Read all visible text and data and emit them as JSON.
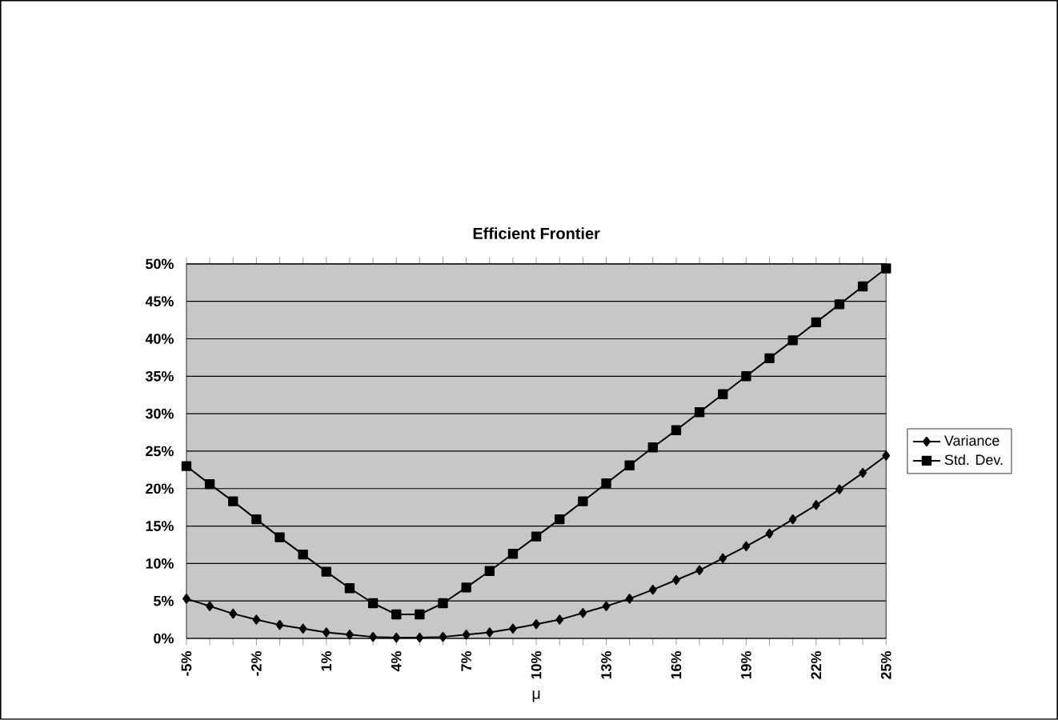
{
  "chart_data": {
    "type": "line",
    "title": "Efficient Frontier",
    "xlabel": "μ",
    "categories": [
      "-5%",
      null,
      null,
      "-2%",
      null,
      null,
      "1%",
      null,
      null,
      "4%",
      null,
      null,
      "7%",
      null,
      null,
      "10%",
      null,
      null,
      "13%",
      null,
      null,
      "16%",
      null,
      null,
      "19%",
      null,
      null,
      "22%",
      null,
      null,
      "25%"
    ],
    "series": [
      {
        "name": "Variance",
        "color": "#000000",
        "marker": "diamond",
        "values": [
          5.3,
          4.3,
          3.3,
          2.5,
          1.8,
          1.3,
          0.8,
          0.5,
          0.2,
          0.1,
          0.1,
          0.2,
          0.5,
          0.8,
          1.3,
          1.9,
          2.5,
          3.4,
          4.3,
          5.3,
          6.5,
          7.8,
          9.1,
          10.7,
          12.3,
          14.0,
          15.9,
          17.8,
          19.9,
          22.1,
          24.4
        ]
      },
      {
        "name": "Std. Dev.",
        "color": "#000000",
        "marker": "square",
        "values": [
          23.0,
          20.6,
          18.3,
          15.9,
          13.5,
          11.2,
          8.9,
          6.7,
          4.7,
          3.2,
          3.2,
          4.7,
          6.8,
          9.0,
          11.3,
          13.6,
          15.9,
          18.3,
          20.7,
          23.1,
          25.5,
          27.8,
          30.2,
          32.6,
          35.0,
          37.4,
          39.8,
          42.2,
          44.6,
          47.0,
          49.4
        ]
      }
    ],
    "ylim": [
      0,
      50
    ],
    "yticks": [
      {
        "value": 0,
        "label": "0%"
      },
      {
        "value": 5,
        "label": "5%"
      },
      {
        "value": 10,
        "label": "10%"
      },
      {
        "value": 15,
        "label": "15%"
      },
      {
        "value": 20,
        "label": "20%"
      },
      {
        "value": 25,
        "label": "25%"
      },
      {
        "value": 30,
        "label": "30%"
      },
      {
        "value": 35,
        "label": "35%"
      },
      {
        "value": 40,
        "label": "40%"
      },
      {
        "value": 45,
        "label": "45%"
      },
      {
        "value": 50,
        "label": "50%"
      }
    ],
    "grid": "y",
    "legend": "right",
    "line_style": "solid"
  }
}
